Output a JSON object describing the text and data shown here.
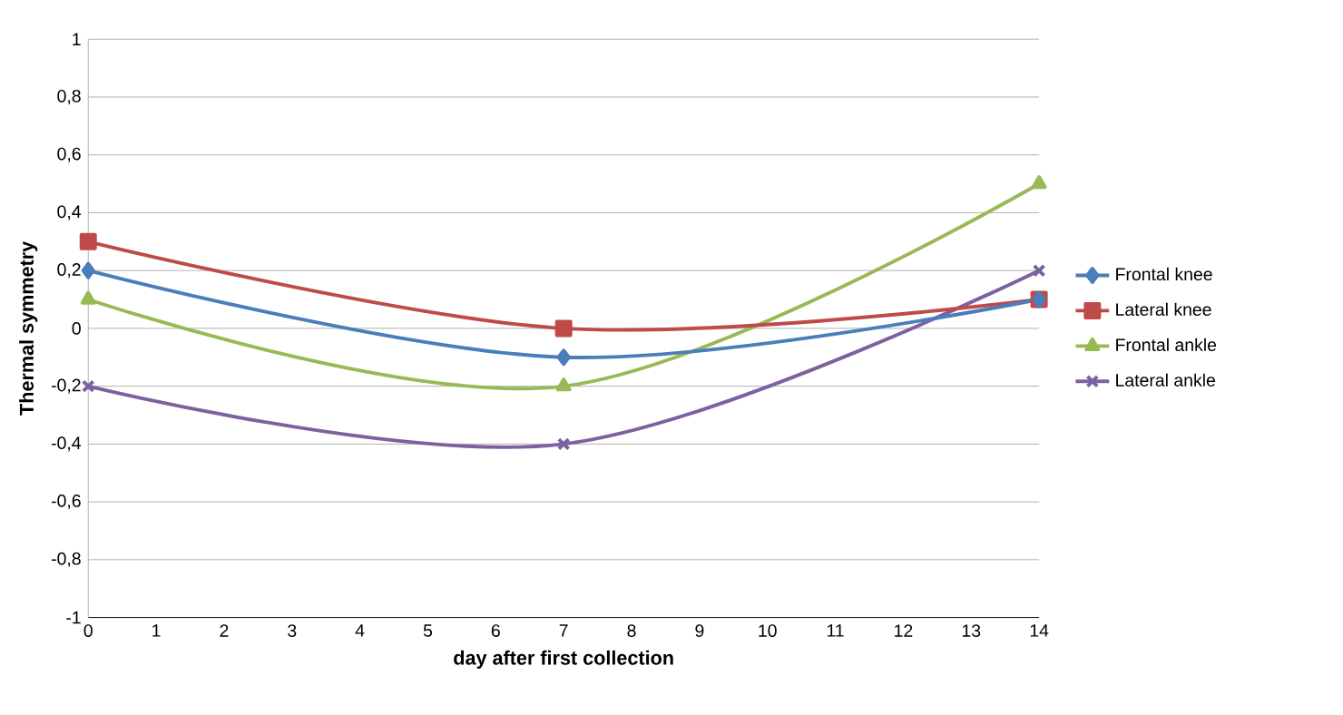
{
  "chart_data": {
    "type": "line",
    "xlabel": "day after  first collection",
    "ylabel": "Thermal symmetry",
    "x": [
      0,
      7,
      14
    ],
    "series": [
      {
        "name": "Frontal knee",
        "color": "#4a7ebb",
        "marker": "diamond",
        "values": [
          0.2,
          -0.1,
          0.1
        ]
      },
      {
        "name": "Lateral knee",
        "color": "#be4b48",
        "marker": "square",
        "values": [
          0.3,
          0,
          0.1
        ]
      },
      {
        "name": "Frontal ankle",
        "color": "#98b954",
        "marker": "triangle",
        "values": [
          0.1,
          -0.2,
          0.5
        ]
      },
      {
        "name": "Lateral ankle",
        "color": "#7d60a0",
        "marker": "cross",
        "values": [
          -0.2,
          -0.4,
          0.2
        ]
      }
    ],
    "xlim": [
      0,
      14
    ],
    "xticks": [
      0,
      1,
      2,
      3,
      4,
      5,
      6,
      7,
      8,
      9,
      10,
      11,
      12,
      13,
      14
    ],
    "ylim": [
      -1,
      1
    ],
    "yticks": [
      {
        "value": -1,
        "label": "-1"
      },
      {
        "value": -0.8,
        "label": "-0,8"
      },
      {
        "value": -0.6,
        "label": "-0,6"
      },
      {
        "value": -0.4,
        "label": "-0,4"
      },
      {
        "value": -0.2,
        "label": "-0,2"
      },
      {
        "value": 0,
        "label": "0"
      },
      {
        "value": 0.2,
        "label": "0,2"
      },
      {
        "value": 0.4,
        "label": "0,4"
      },
      {
        "value": 0.6,
        "label": "0,6"
      },
      {
        "value": 0.8,
        "label": "0,8"
      },
      {
        "value": 1,
        "label": "1"
      }
    ],
    "grid": "y",
    "legend": "right",
    "line_style": "solid"
  }
}
